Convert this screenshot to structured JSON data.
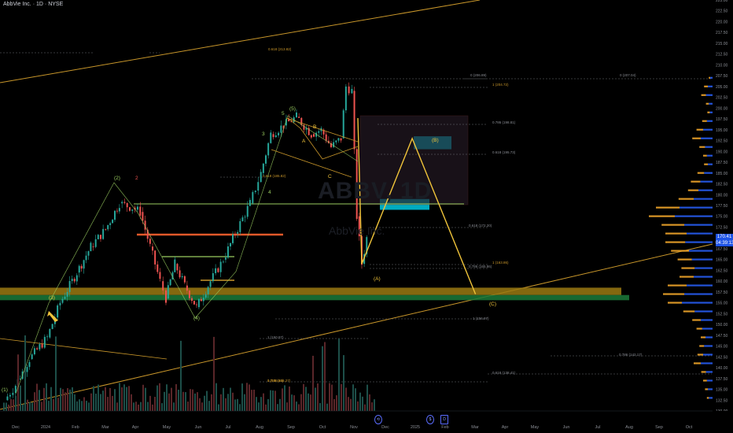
{
  "header": {
    "title": "AbbVie Inc.",
    "interval": "1D",
    "exchange": "NYSE"
  },
  "watermark": {
    "symbol": "ABBV, 1D",
    "name": "AbbVie Inc."
  },
  "price_tag": {
    "price": "170.41",
    "countdown": "04:39:13"
  },
  "colors": {
    "background": "#000000",
    "candle_up": "#26a69a",
    "candle_down": "#ef5350",
    "fib_line": "#f0b43a",
    "volume_profile_up": "#2962ff",
    "volume_profile_down": "#f0a52a",
    "zone_gold": "#9b7a12",
    "zone_green": "#1b7a3a",
    "target_box": "#00acc1"
  },
  "wave_labels": [
    "(1)",
    "(2)",
    "(3)",
    "(4)",
    "(5)",
    "2",
    "3",
    "4",
    "5",
    "A",
    "B",
    "C",
    "(A)",
    "(B)",
    "(C)"
  ],
  "fib_labels": [
    "0.618 (213.82)",
    "0 (206.89)",
    "0 (207.04)",
    "1 (204.72)",
    "0.786 (198.81)",
    "0.618 (195.73)",
    "0.618 (185.82)",
    "0.618 (172.20)",
    "0.786 (165.86)",
    "1 (163.86)",
    "1 (156.97)",
    "1 (150.87)",
    "0.786 (146.27)",
    "0.786 (142.17)",
    "0.618 (138.41)",
    "1 (136.80)"
  ],
  "chart_data": {
    "type": "candlestick",
    "title": "AbbVie Inc., 1D, NYSE",
    "y_axis": {
      "min": 130,
      "max": 225,
      "ticks": [
        "225.00",
        "222.50",
        "220.00",
        "217.50",
        "215.00",
        "212.50",
        "210.00",
        "207.50",
        "205.00",
        "202.50",
        "200.00",
        "197.50",
        "195.00",
        "192.50",
        "190.00",
        "187.50",
        "185.00",
        "182.50",
        "180.00",
        "177.50",
        "175.00",
        "172.50",
        "170.00",
        "167.50",
        "165.00",
        "162.50",
        "160.00",
        "157.50",
        "155.00",
        "152.50",
        "150.00",
        "147.50",
        "145.00",
        "142.50",
        "140.00",
        "137.50",
        "135.00",
        "132.50",
        "130.00"
      ]
    },
    "x_axis": {
      "ticks": [
        "Dec",
        "2024",
        "Feb",
        "Mar",
        "Apr",
        "May",
        "Jun",
        "Jul",
        "Aug",
        "Sep",
        "Oct",
        "Nov",
        "Dec",
        "2025",
        "Feb",
        "Mar",
        "Apr",
        "May",
        "Jun",
        "Jul",
        "Aug",
        "Sep",
        "Oct"
      ]
    },
    "price_path": {
      "dates": [
        "2023-11-20",
        "2023-12-01",
        "2023-12-15",
        "2024-01-02",
        "2024-01-15",
        "2024-02-01",
        "2024-02-15",
        "2024-03-01",
        "2024-03-15",
        "2024-03-28",
        "2024-04-05",
        "2024-04-15",
        "2024-04-25",
        "2024-05-01",
        "2024-05-10",
        "2024-05-20",
        "2024-06-01",
        "2024-06-15",
        "2024-06-28",
        "2024-07-10",
        "2024-07-25",
        "2024-08-05",
        "2024-08-15",
        "2024-08-28",
        "2024-09-10",
        "2024-09-25",
        "2024-10-05",
        "2024-10-15",
        "2024-10-25",
        "2024-10-30",
        "2024-11-05",
        "2024-11-10",
        "2024-11-15",
        "2024-11-20"
      ],
      "close": [
        132.5,
        136,
        142,
        147,
        155,
        162,
        168,
        172,
        178,
        177,
        176,
        168,
        160,
        156,
        164,
        159,
        154,
        160,
        165,
        171,
        178,
        185,
        194,
        196,
        198,
        194,
        195,
        191,
        193,
        205,
        204,
        175,
        164,
        170
      ]
    },
    "projection": {
      "labels": [
        "(A)",
        "(B)",
        "(C)"
      ],
      "dates": [
        "2024-11-15",
        "2025-01-05",
        "2025-03-10"
      ],
      "prices": [
        164,
        193,
        157
      ]
    },
    "zones": [
      {
        "name": "support-gold",
        "from": 156.8,
        "to": 158.5
      },
      {
        "name": "support-green",
        "from": 155.6,
        "to": 156.8
      },
      {
        "name": "target-B",
        "from": 190.5,
        "to": 193.5
      },
      {
        "name": "entry-box",
        "from": 176.5,
        "to": 179.0
      }
    ],
    "volume_profile": {
      "levels": [
        207,
        205,
        203,
        201,
        199,
        197,
        195,
        193,
        191,
        189,
        187,
        185,
        183,
        181,
        179,
        177,
        175,
        173,
        171,
        169,
        167,
        165,
        163,
        161,
        159,
        157,
        155,
        153,
        151,
        149,
        147,
        145,
        143,
        141,
        139,
        137,
        135,
        133
      ],
      "up": [
        5,
        10,
        14,
        8,
        6,
        12,
        20,
        25,
        16,
        12,
        10,
        18,
        26,
        30,
        40,
        70,
        80,
        60,
        55,
        58,
        50,
        44,
        38,
        40,
        55,
        60,
        65,
        38,
        25,
        22,
        15,
        18,
        20,
        25,
        14,
        12,
        10,
        8
      ],
      "down": [
        3,
        8,
        10,
        6,
        5,
        10,
        14,
        18,
        12,
        8,
        8,
        14,
        20,
        22,
        32,
        50,
        55,
        48,
        45,
        42,
        38,
        30,
        28,
        30,
        40,
        45,
        30,
        24,
        18,
        12,
        10,
        10,
        12,
        15,
        10,
        8,
        6,
        4
      ]
    }
  }
}
